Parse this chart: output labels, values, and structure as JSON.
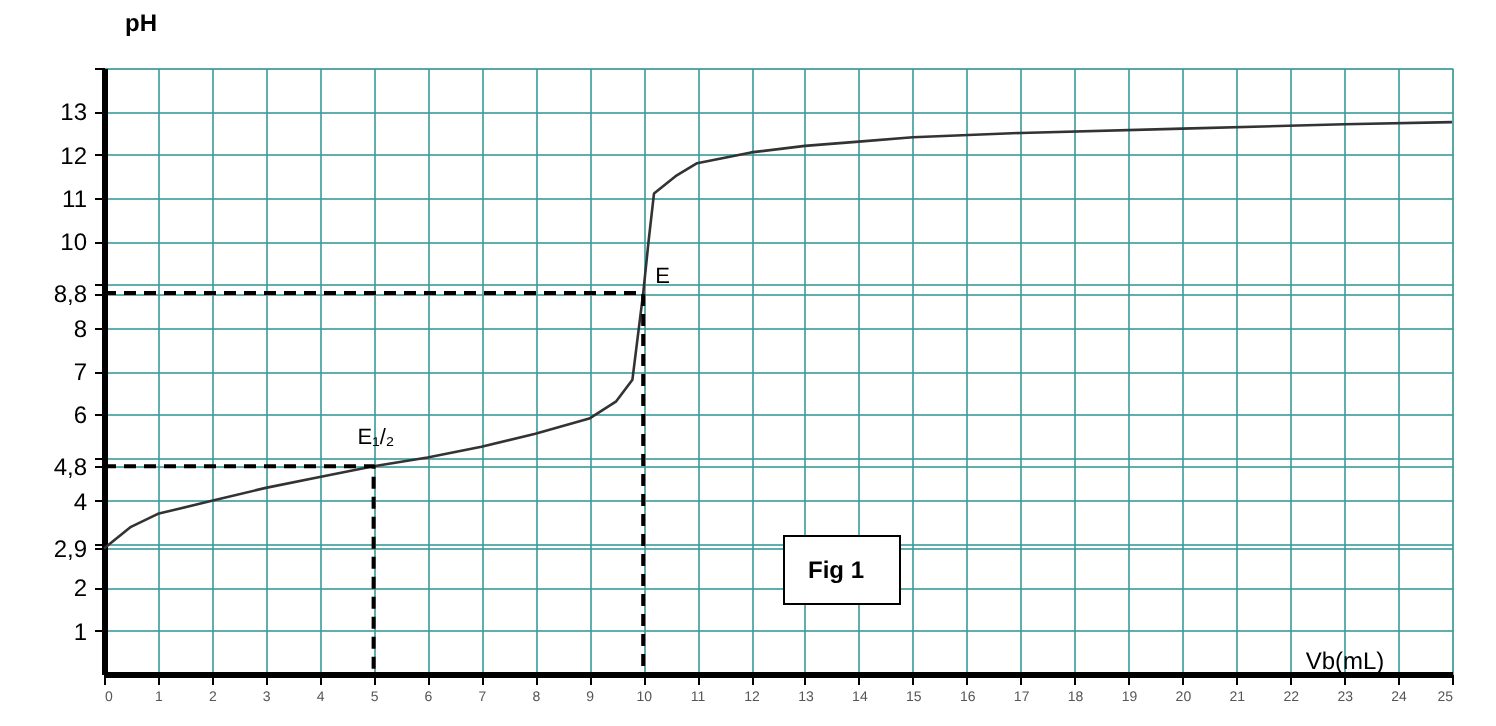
{
  "chart_data": {
    "type": "line",
    "xlabel": "Vb(mL)",
    "ylabel": "pH",
    "xlim": [
      0,
      25
    ],
    "xticks": [
      0,
      1,
      2,
      3,
      4,
      5,
      6,
      7,
      8,
      9,
      10,
      11,
      12,
      13,
      14,
      15,
      16,
      17,
      18,
      19,
      20,
      21,
      22,
      23,
      24,
      25
    ],
    "ylim": [
      0,
      14
    ],
    "yticks": [
      1,
      2,
      {
        "value": 2.9,
        "label": "2,9"
      },
      {
        "value": 3,
        "label": null
      },
      4,
      {
        "value": 4.8,
        "label": "4,8"
      },
      {
        "value": 5,
        "label": null
      },
      6,
      7,
      8,
      {
        "value": 8.8,
        "label": "8,8"
      },
      {
        "value": 9,
        "label": null
      },
      10,
      11,
      12,
      13,
      {
        "value": 14,
        "label": null
      }
    ],
    "grid": true,
    "series": [
      {
        "color": "#333333",
        "line_style": "solid",
        "x": [
          0,
          0.5,
          1,
          2,
          3,
          4,
          5,
          6,
          7,
          8,
          9,
          9.5,
          9.8,
          10,
          10.1,
          10.2,
          10.6,
          11,
          12,
          13,
          14,
          15,
          17,
          20,
          23,
          25
        ],
        "values": [
          2.9,
          3.4,
          3.7,
          4.0,
          4.3,
          4.55,
          4.8,
          5.0,
          5.25,
          5.55,
          5.9,
          6.3,
          6.8,
          8.8,
          10,
          11.1,
          11.5,
          11.8,
          12.05,
          12.2,
          12.3,
          12.4,
          12.5,
          12.6,
          12.7,
          12.75
        ]
      },
      {
        "color": "#000000",
        "line_style": "dashed",
        "x": [
          0,
          10,
          10
        ],
        "values": [
          8.8,
          8.8,
          0
        ]
      },
      {
        "color": "#000000",
        "line_style": "dashed",
        "x": [
          0,
          5,
          5
        ],
        "values": [
          4.8,
          4.8,
          0
        ]
      }
    ],
    "annotations": [
      {
        "text": "E",
        "x": 10,
        "y": 8.8
      },
      {
        "text": "E₁/₂",
        "x": 5,
        "y": 4.8
      },
      "Fig 1"
    ]
  }
}
